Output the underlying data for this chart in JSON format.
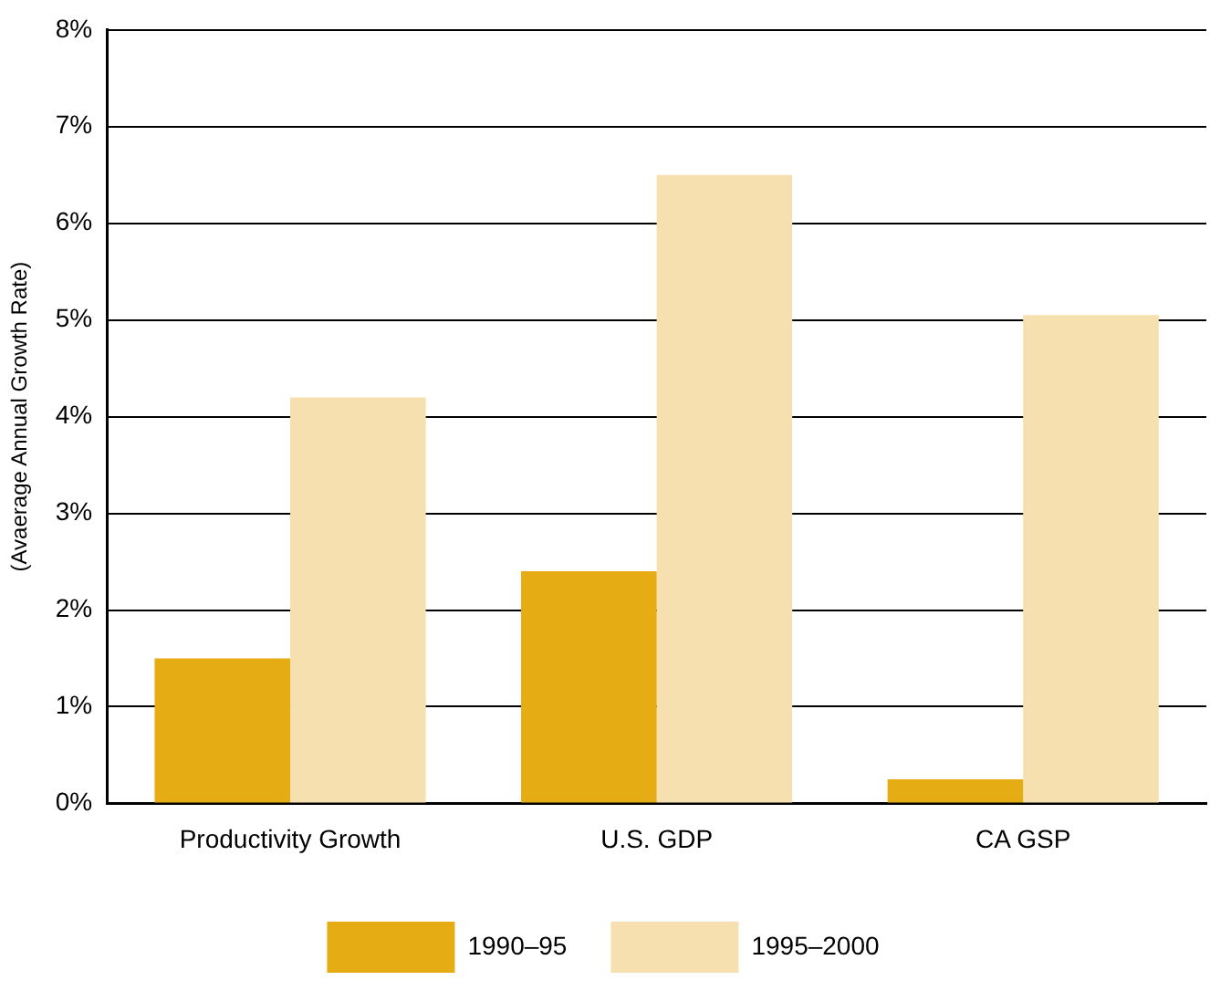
{
  "chart_data": {
    "type": "bar",
    "ylabel": "(Avaerage Annual Growth Rate)",
    "categories": [
      "Productivity Growth",
      "U.S. GDP",
      "CA GSP"
    ],
    "series": [
      {
        "name": "1990–95",
        "color": "#e6ac13",
        "values": [
          1.5,
          2.4,
          0.25
        ]
      },
      {
        "name": "1995–2000",
        "color": "#f7e0b0",
        "values": [
          4.2,
          6.5,
          5.05
        ]
      }
    ],
    "ylim": [
      0,
      8
    ],
    "yticks": [
      {
        "value": 0,
        "label": "0%"
      },
      {
        "value": 1,
        "label": "1%"
      },
      {
        "value": 2,
        "label": "2%"
      },
      {
        "value": 3,
        "label": "3%"
      },
      {
        "value": 4,
        "label": "4%"
      },
      {
        "value": 5,
        "label": "5%"
      },
      {
        "value": 6,
        "label": "6%"
      },
      {
        "value": 7,
        "label": "7%"
      },
      {
        "value": 8,
        "label": "8%"
      }
    ],
    "grid": "y",
    "legend": "bottom"
  }
}
